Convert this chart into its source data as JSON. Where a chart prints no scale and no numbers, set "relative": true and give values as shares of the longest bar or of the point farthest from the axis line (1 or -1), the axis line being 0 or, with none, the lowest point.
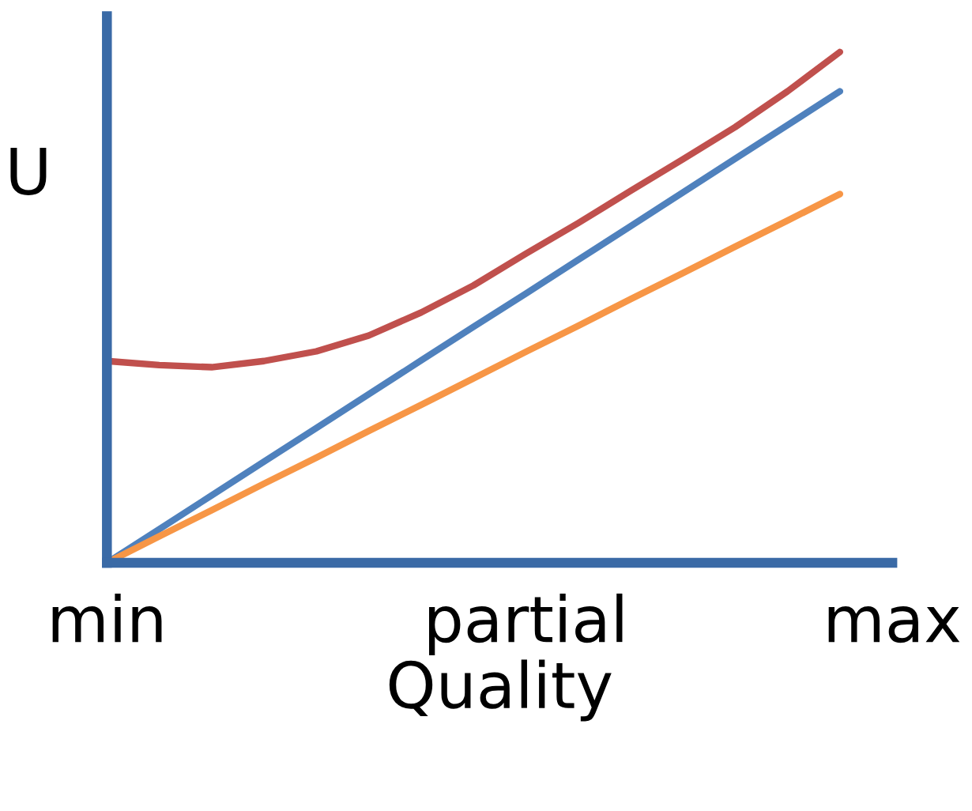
{
  "chart_data": {
    "type": "line",
    "relative": true,
    "xlabel": "Quality",
    "ylabel": "U",
    "categories": [
      "min",
      null,
      null,
      null,
      null,
      null,
      null,
      null,
      "partial",
      null,
      null,
      null,
      null,
      null,
      null,
      "max"
    ],
    "grid": false,
    "legend": false,
    "marker": "none",
    "line_style": "solid",
    "series": [
      {
        "color": "#4f81bd",
        "values": [
          0,
          0.066,
          0.132,
          0.198,
          0.264,
          0.33,
          0.396,
          0.462,
          0.527,
          0.593,
          0.659,
          0.725,
          0.791,
          0.857,
          0.923,
          null
        ]
      },
      {
        "color": "#f79646",
        "values": [
          0,
          0.052,
          0.103,
          0.155,
          0.206,
          0.258,
          0.309,
          0.361,
          0.413,
          0.464,
          0.516,
          0.567,
          0.619,
          0.67,
          0.722,
          null
        ]
      },
      {
        "color": "#c0504d",
        "values": [
          0.395,
          0.387,
          0.383,
          0.395,
          0.414,
          0.445,
          0.49,
          0.543,
          0.605,
          0.665,
          0.728,
          0.79,
          0.853,
          0.923,
          1,
          null
        ]
      }
    ]
  }
}
